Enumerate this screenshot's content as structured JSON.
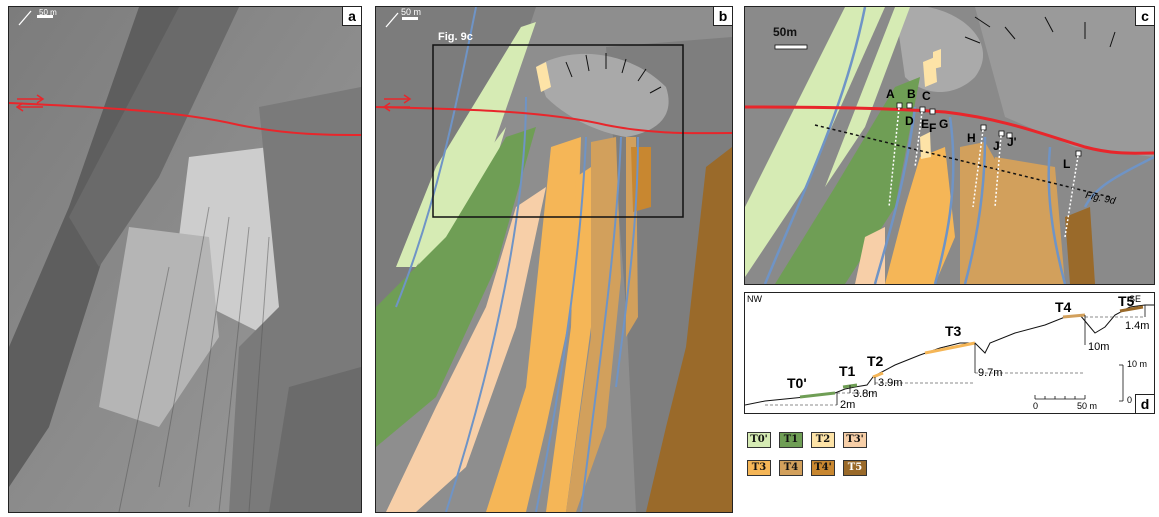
{
  "panel_a": {
    "label": "a",
    "scale_label": "50 m"
  },
  "panel_b": {
    "label": "b",
    "scale_label": "50 m",
    "box_label": "Fig. 9c"
  },
  "panel_c": {
    "label": "c",
    "scale_label": "50m",
    "points": [
      "A",
      "B",
      "C",
      "D",
      "E",
      "F",
      "G",
      "H",
      "J",
      "J'",
      "L"
    ],
    "profile_label": "Fig. 9d"
  },
  "panel_d": {
    "label": "d",
    "nw": "NW",
    "se": "SE",
    "terraces": [
      "T0'",
      "T1",
      "T2",
      "T3",
      "T4",
      "T5"
    ],
    "heights": [
      "2m",
      "3.8m",
      "3.9m",
      "9.7m",
      "10m",
      "1.4m"
    ],
    "vscale": "10 m",
    "vscale_zero": "0",
    "hscale_zero": "0",
    "hscale_max": "50 m"
  },
  "legend": {
    "items": [
      {
        "label": "T0'",
        "color": "#d6ebb4"
      },
      {
        "label": "T1",
        "color": "#6f9e55"
      },
      {
        "label": "T2",
        "color": "#fde3a7"
      },
      {
        "label": "T3'",
        "color": "#f7cfa8"
      },
      {
        "label": "T3",
        "color": "#f5b657"
      },
      {
        "label": "T4",
        "color": "#d2a05c"
      },
      {
        "label": "T4'",
        "color": "#c88730"
      },
      {
        "label": "T5",
        "color": "#9a6a2a"
      }
    ]
  },
  "colors": {
    "fault": "#e8262b",
    "river": "#6f94c6",
    "bg_grey": "#8c8c8c"
  }
}
